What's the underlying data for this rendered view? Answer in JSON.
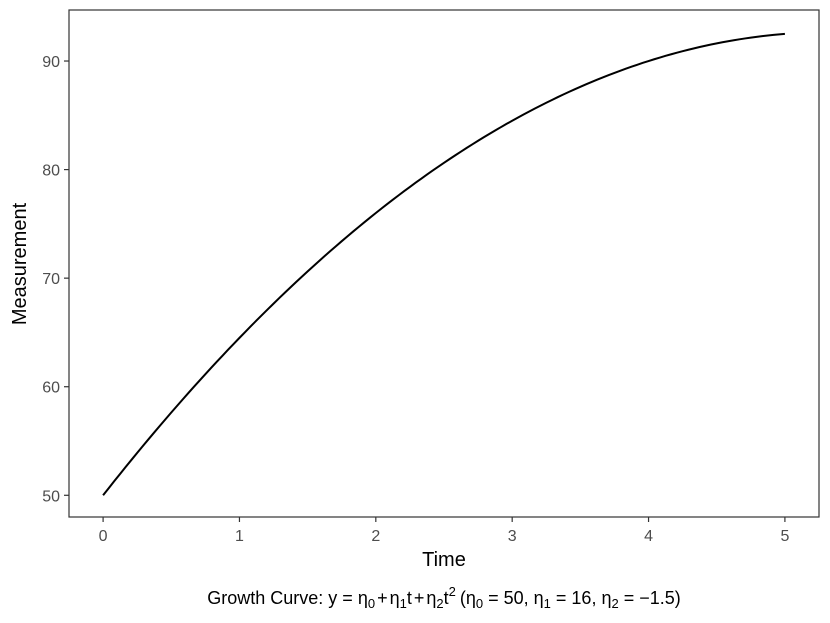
{
  "chart_data": {
    "type": "line",
    "xlabel": "Time",
    "ylabel": "Measurement",
    "xlim": [
      -0.25,
      5.25
    ],
    "ylim": [
      48,
      94.7
    ],
    "x_ticks": [
      0,
      1,
      2,
      3,
      4,
      5
    ],
    "y_ticks": [
      50,
      60,
      70,
      80,
      90
    ],
    "x_tick_labels": [
      "0",
      "1",
      "2",
      "3",
      "4",
      "5"
    ],
    "y_tick_labels": [
      "50",
      "60",
      "70",
      "80",
      "90"
    ],
    "grid": false,
    "series": [
      {
        "x": [
          0,
          0.5,
          1,
          1.5,
          2,
          2.5,
          3,
          3.5,
          4,
          4.5,
          5
        ],
        "values": [
          50,
          57.625,
          64.5,
          70.625,
          76,
          80.625,
          84.5,
          87.625,
          90,
          91.625,
          92.5
        ],
        "color": "#000000"
      }
    ],
    "caption": {
      "prefix": "Growth Curve: y = ",
      "eta": "η",
      "sub0": "0",
      "sub1": "1",
      "sub2": "2",
      "t": "t",
      "sup2": "2",
      "plus": "+",
      "open_paren": "(",
      "equals_50": " = 50, ",
      "equals_16": " = 16, ",
      "equals_neg": " = −1.5)"
    }
  }
}
